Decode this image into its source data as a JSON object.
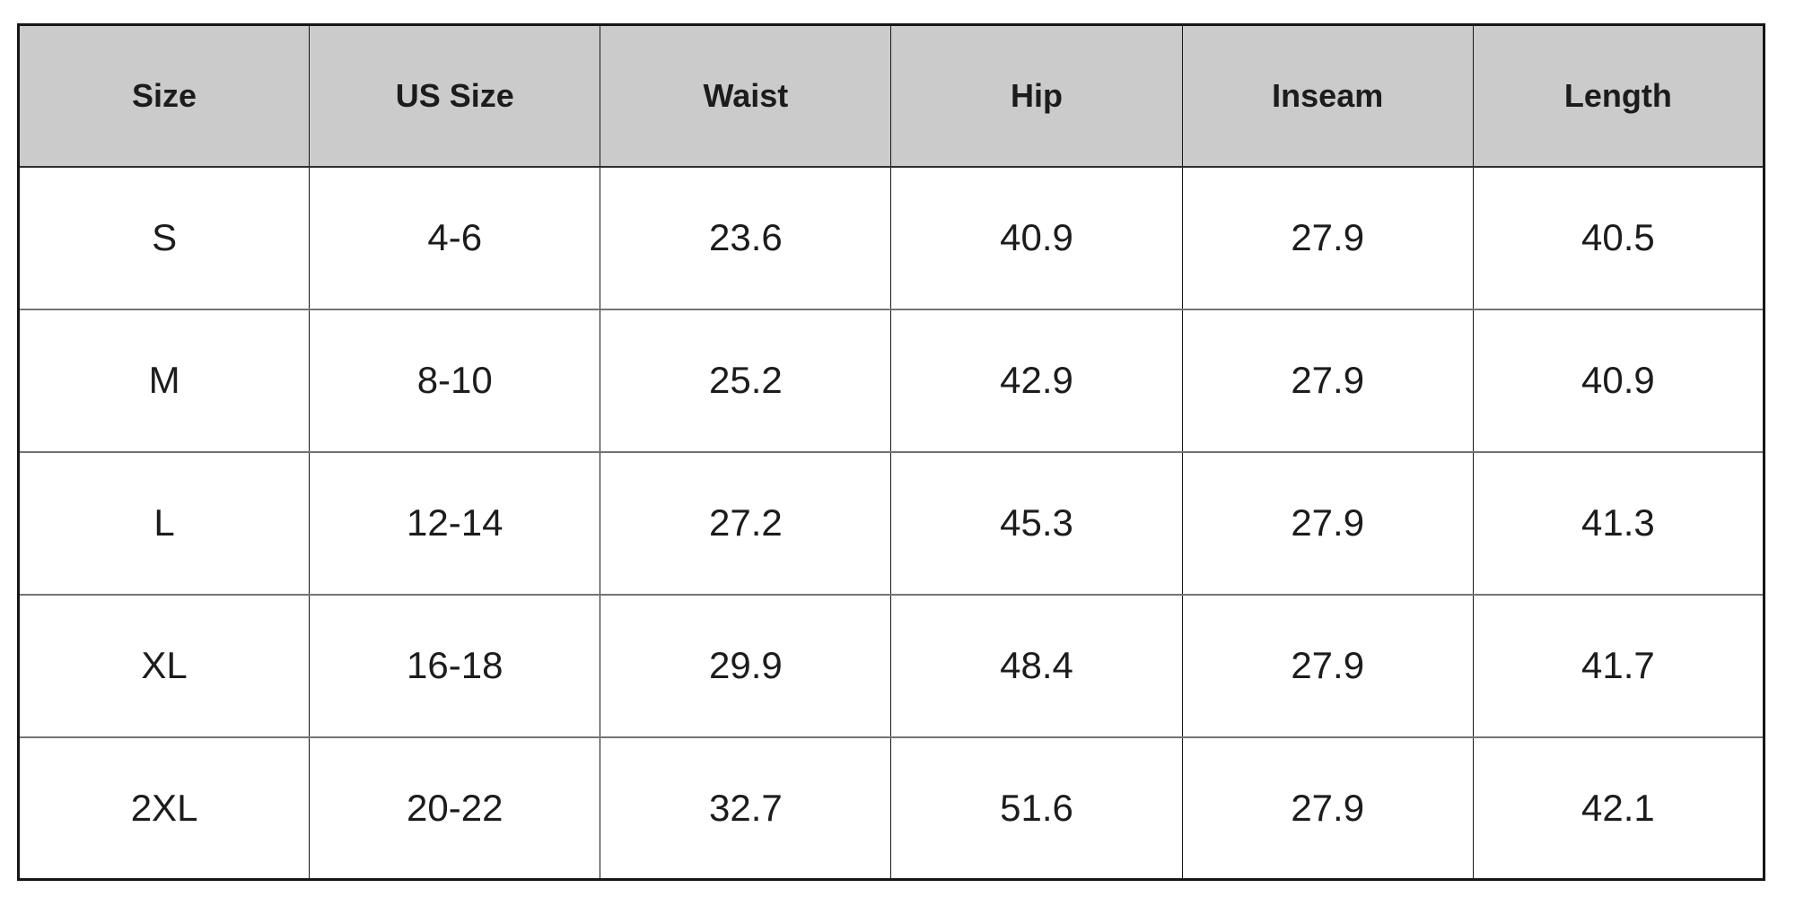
{
  "chart_data": {
    "type": "table",
    "columns": [
      "Size",
      "US Size",
      "Waist",
      "Hip",
      "Inseam",
      "Length"
    ],
    "rows": [
      [
        "S",
        "4-6",
        "23.6",
        "40.9",
        "27.9",
        "40.5"
      ],
      [
        "M",
        "8-10",
        "25.2",
        "42.9",
        "27.9",
        "40.9"
      ],
      [
        "L",
        "12-14",
        "27.2",
        "45.3",
        "27.9",
        "41.3"
      ],
      [
        "XL",
        "16-18",
        "29.9",
        "48.4",
        "27.9",
        "41.7"
      ],
      [
        "2XL",
        "20-22",
        "32.7",
        "51.6",
        "27.9",
        "42.1"
      ]
    ],
    "layout": {
      "header_background": "#cbcbcb",
      "outer_border_color": "#161616",
      "row_divider_color": "#747474",
      "text_color": "#1c1c1c",
      "background": "#ffffff"
    }
  }
}
